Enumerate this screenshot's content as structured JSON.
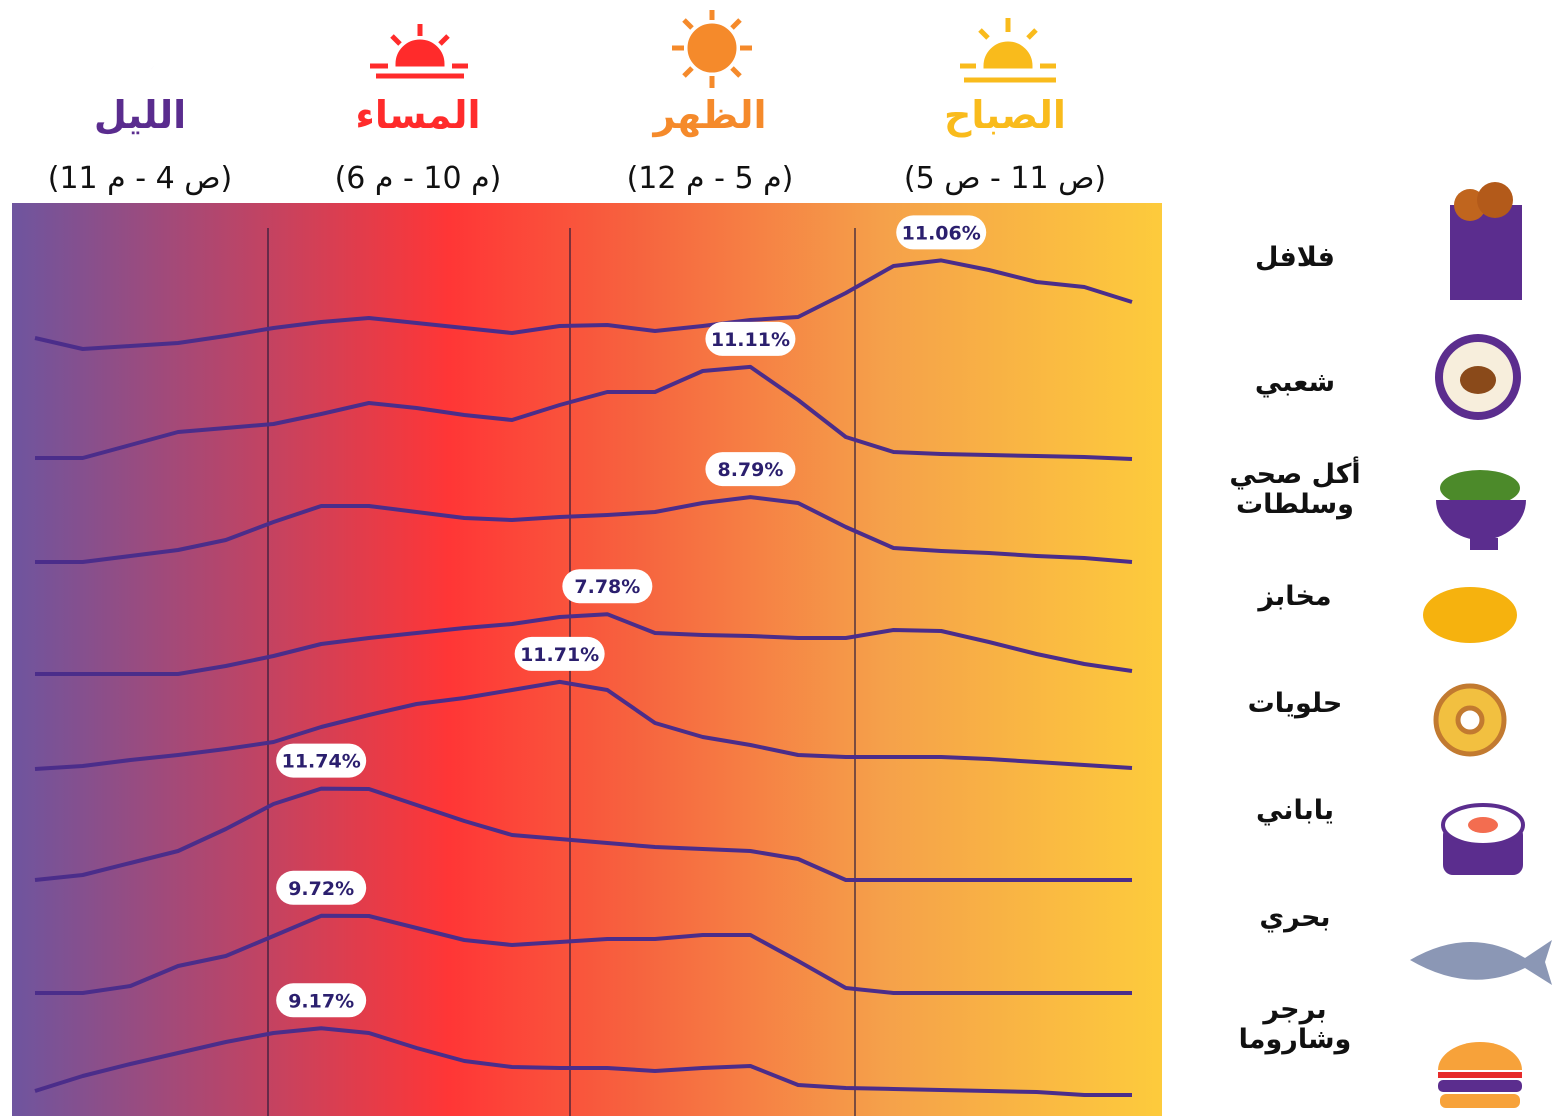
{
  "chart_data": {
    "type": "line",
    "periods": [
      {
        "name": "الليل",
        "time": "(11 م - 4 ص)",
        "color": "#5a2c8e"
      },
      {
        "name": "المساء",
        "time": "(6 م - 10 م)",
        "color": "#ff2b2b"
      },
      {
        "name": "الظهر",
        "time": "(12 م - 5 م)",
        "color": "#f58a2b"
      },
      {
        "name": "الصباح",
        "time": "(5 ص - 11 ص)",
        "color": "#f9bb1c"
      }
    ],
    "categories": [
      null,
      null,
      null,
      null,
      null,
      null,
      null,
      null,
      null,
      null,
      null,
      null,
      null,
      null,
      null,
      null,
      null,
      null,
      null,
      null,
      null,
      null,
      null,
      null
    ],
    "series": [
      {
        "name": "فلافل",
        "color": "#4b2d8a",
        "values": [
          3.3,
          2.2,
          2.5,
          2.8,
          3.5,
          4.3,
          4.9,
          5.3,
          4.8,
          4.3,
          3.8,
          4.5,
          4.6,
          4.0,
          4.5,
          5.1,
          5.4,
          7.8,
          10.5,
          11.06,
          10.1,
          8.9,
          8.4,
          6.9
        ],
        "value_labels": [
          null,
          null,
          null,
          null,
          null,
          null,
          null,
          null,
          null,
          null,
          null,
          null,
          null,
          null,
          null,
          null,
          null,
          null,
          null,
          "11.06%",
          null,
          null,
          null,
          null
        ]
      },
      {
        "name": "شعبي",
        "color": "#4b2d8a",
        "values": [
          2.0,
          2.0,
          3.3,
          4.6,
          5.0,
          5.4,
          6.4,
          7.5,
          7.0,
          6.3,
          5.8,
          7.3,
          8.6,
          8.6,
          10.7,
          11.11,
          7.8,
          4.1,
          2.6,
          2.4,
          2.3,
          2.2,
          2.1,
          1.9
        ],
        "value_labels": [
          null,
          null,
          null,
          null,
          null,
          null,
          null,
          null,
          null,
          null,
          null,
          null,
          null,
          null,
          null,
          "11.11%",
          null,
          null,
          null,
          null,
          null,
          null,
          null,
          null
        ]
      },
      {
        "name": "أكل صحي وسلطات",
        "color": "#4b2d8a",
        "values": [
          2.3,
          2.3,
          2.9,
          3.5,
          4.5,
          6.3,
          7.9,
          7.9,
          7.3,
          6.7,
          6.5,
          6.8,
          7.0,
          7.3,
          8.2,
          8.79,
          8.2,
          5.8,
          3.7,
          3.4,
          3.2,
          2.9,
          2.7,
          2.3
        ],
        "value_labels": [
          null,
          null,
          null,
          null,
          null,
          null,
          null,
          null,
          null,
          null,
          null,
          null,
          null,
          null,
          null,
          "8.79%",
          null,
          null,
          null,
          null,
          null,
          null,
          null,
          null
        ]
      },
      {
        "name": "مخابز",
        "color": "#4b2d8a",
        "values": [
          1.8,
          1.8,
          1.8,
          1.8,
          2.6,
          3.6,
          4.8,
          5.4,
          5.9,
          6.4,
          6.8,
          7.5,
          7.78,
          5.9,
          5.7,
          5.6,
          5.4,
          5.4,
          6.2,
          6.1,
          5.0,
          3.8,
          2.8,
          2.1
        ],
        "value_labels": [
          null,
          null,
          null,
          null,
          null,
          null,
          null,
          null,
          null,
          null,
          null,
          null,
          "7.78%",
          null,
          null,
          null,
          null,
          null,
          null,
          null,
          null,
          null,
          null,
          null
        ]
      },
      {
        "name": "حلويات",
        "color": "#4b2d8a",
        "values": [
          3.0,
          3.3,
          3.9,
          4.4,
          5.0,
          5.7,
          7.2,
          8.4,
          9.5,
          10.1,
          10.9,
          11.71,
          10.9,
          7.6,
          6.2,
          5.4,
          4.4,
          4.2,
          4.2,
          4.2,
          4.0,
          3.7,
          3.4,
          3.1
        ],
        "value_labels": [
          null,
          null,
          null,
          null,
          null,
          null,
          null,
          null,
          null,
          null,
          null,
          "11.71%",
          null,
          null,
          null,
          null,
          null,
          null,
          null,
          null,
          null,
          null,
          null,
          null
        ]
      },
      {
        "name": "ياباني",
        "color": "#4b2d8a",
        "values": [
          2.6,
          3.1,
          4.3,
          5.5,
          7.7,
          10.2,
          11.74,
          11.7,
          10.1,
          8.5,
          7.1,
          6.7,
          6.3,
          5.9,
          5.7,
          5.5,
          4.7,
          2.6,
          2.6,
          2.6,
          2.6,
          2.6,
          2.6,
          2.6
        ],
        "value_labels": [
          null,
          null,
          null,
          null,
          null,
          null,
          "11.74%",
          null,
          null,
          null,
          null,
          null,
          null,
          null,
          null,
          null,
          null,
          null,
          null,
          null,
          null,
          null,
          null,
          null
        ]
      },
      {
        "name": "بحري",
        "color": "#4b2d8a",
        "values": [
          2.0,
          2.0,
          2.7,
          4.7,
          5.7,
          7.7,
          9.72,
          9.7,
          8.5,
          7.3,
          6.8,
          7.1,
          7.4,
          7.4,
          7.8,
          7.8,
          5.2,
          2.5,
          2.0,
          2.0,
          2.0,
          2.0,
          2.0,
          2.0
        ],
        "value_labels": [
          null,
          null,
          null,
          null,
          null,
          null,
          "9.72%",
          null,
          null,
          null,
          null,
          null,
          null,
          null,
          null,
          null,
          null,
          null,
          null,
          null,
          null,
          null,
          null,
          null
        ]
      },
      {
        "name": "برجر وشاروما",
        "color": "#4b2d8a",
        "values": [
          2.9,
          4.4,
          5.6,
          6.7,
          7.8,
          8.7,
          9.17,
          8.7,
          7.2,
          5.9,
          5.3,
          5.2,
          5.2,
          4.9,
          5.2,
          5.4,
          3.5,
          3.2,
          3.1,
          3.0,
          2.9,
          2.8,
          2.5,
          2.5
        ],
        "value_labels": [
          null,
          null,
          null,
          null,
          null,
          null,
          "9.17%",
          null,
          null,
          null,
          null,
          null,
          null,
          null,
          null,
          null,
          null,
          null,
          null,
          null,
          null,
          null,
          null,
          null
        ]
      }
    ]
  }
}
